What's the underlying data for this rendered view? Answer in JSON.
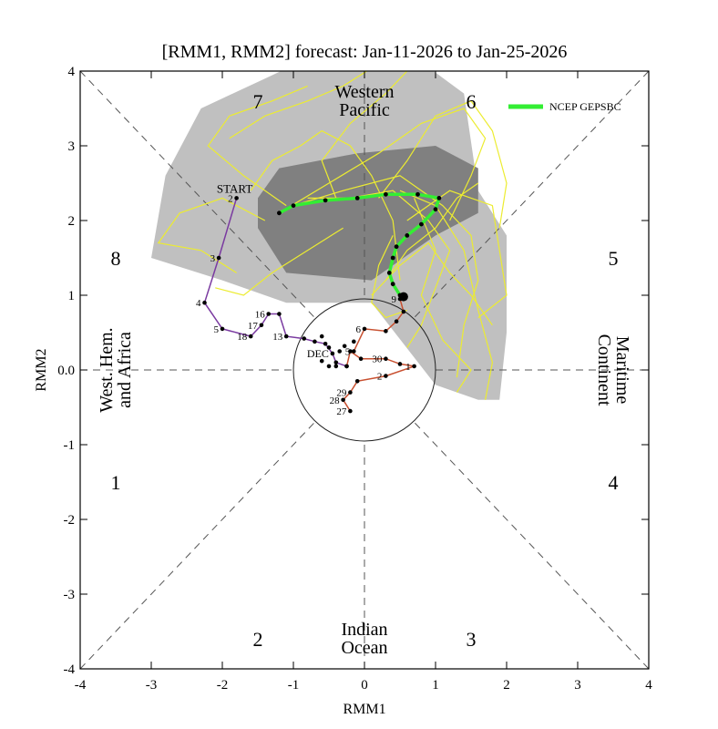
{
  "chart_data": {
    "type": "scatter",
    "title": "[RMM1, RMM2] forecast: Jan-11-2026 to Jan-25-2026",
    "xlabel": "RMM1",
    "ylabel": "RMM2",
    "xlim": [
      -4,
      4
    ],
    "ylim": [
      -4,
      4
    ],
    "x_ticks": [
      "-4",
      "-3",
      "-2",
      "-1",
      "0",
      "1",
      "2",
      "3",
      "4"
    ],
    "y_ticks": [
      "-4",
      "-3",
      "-2",
      "-1",
      "0.0",
      "1",
      "2",
      "3",
      "4"
    ],
    "grid": false,
    "legend_position": "top-right",
    "phases": [
      {
        "label": "1",
        "x": -3.5,
        "y": -1.5
      },
      {
        "label": "2",
        "x": -1.5,
        "y": -3.6
      },
      {
        "label": "3",
        "x": 1.5,
        "y": -3.6
      },
      {
        "label": "4",
        "x": 3.5,
        "y": -1.5
      },
      {
        "label": "5",
        "x": 3.5,
        "y": 1.5
      },
      {
        "label": "6",
        "x": 1.5,
        "y": 3.6
      },
      {
        "label": "7",
        "x": -1.5,
        "y": 3.6
      },
      {
        "label": "8",
        "x": -3.5,
        "y": 1.5
      }
    ],
    "regions": [
      {
        "label": "Western Pacific",
        "lines": [
          "Western",
          "Pacific"
        ],
        "x": 0,
        "y": 3.6,
        "orientation": "horizontal"
      },
      {
        "label": "Indian Ocean",
        "lines": [
          "Indian",
          "Ocean"
        ],
        "x": 0,
        "y": -3.6,
        "orientation": "horizontal"
      },
      {
        "label": "West. Hem. and Africa",
        "lines": [
          "West. Hem.",
          "and Africa"
        ],
        "x": -3.5,
        "y": 0,
        "orientation": "vertical-left"
      },
      {
        "label": "Maritime Continent",
        "lines": [
          "Maritime",
          "Continent"
        ],
        "x": 3.5,
        "y": 0,
        "orientation": "vertical-right"
      }
    ],
    "circle_radius": 1,
    "spread_outer": [
      [
        -3.0,
        1.5
      ],
      [
        -2.8,
        2.6
      ],
      [
        -2.3,
        3.5
      ],
      [
        -1.4,
        3.9
      ],
      [
        -0.5,
        4.3
      ],
      [
        0.4,
        4.4
      ],
      [
        1.4,
        3.7
      ],
      [
        1.6,
        2.4
      ],
      [
        2.0,
        1.8
      ],
      [
        2.0,
        0.5
      ],
      [
        1.9,
        -0.4
      ],
      [
        1.6,
        -0.4
      ],
      [
        1.0,
        -0.2
      ],
      [
        0.1,
        0.9
      ],
      [
        -1.1,
        0.9
      ],
      [
        -2.0,
        1.2
      ]
    ],
    "spread_inner": [
      [
        -1.5,
        2.3
      ],
      [
        -1.2,
        2.7
      ],
      [
        -0.1,
        2.9
      ],
      [
        1.0,
        3.0
      ],
      [
        1.6,
        2.7
      ],
      [
        1.6,
        2.1
      ],
      [
        1.0,
        1.8
      ],
      [
        0.1,
        1.2
      ],
      [
        -1.1,
        1.3
      ],
      [
        -1.5,
        1.9
      ]
    ],
    "members": [
      [
        [
          -1.6,
          2.4
        ],
        [
          -1.3,
          2.8
        ],
        [
          -0.9,
          3.0
        ],
        [
          -0.6,
          3.2
        ],
        [
          -0.2,
          3.0
        ],
        [
          0.1,
          2.6
        ],
        [
          0.4,
          2.0
        ],
        [
          0.5,
          1.2
        ]
      ],
      [
        [
          -1.2,
          2.1
        ],
        [
          -0.5,
          2.5
        ],
        [
          0.2,
          2.9
        ],
        [
          0.8,
          3.3
        ],
        [
          1.4,
          3.5
        ],
        [
          1.7,
          3.1
        ],
        [
          1.5,
          2.6
        ],
        [
          1.2,
          2.0
        ]
      ],
      [
        [
          -1.0,
          2.2
        ],
        [
          -0.3,
          2.4
        ],
        [
          0.5,
          2.6
        ],
        [
          1.1,
          2.2
        ],
        [
          1.5,
          1.8
        ],
        [
          1.6,
          1.2
        ],
        [
          1.4,
          0.6
        ],
        [
          1.3,
          -0.1
        ]
      ],
      [
        [
          -0.8,
          2.3
        ],
        [
          -0.2,
          2.3
        ],
        [
          0.4,
          2.4
        ],
        [
          0.9,
          2.0
        ],
        [
          1.2,
          1.6
        ],
        [
          1.0,
          1.1
        ],
        [
          0.8,
          0.6
        ],
        [
          0.6,
          0.3
        ]
      ],
      [
        [
          -1.4,
          2.0
        ],
        [
          -2.0,
          2.3
        ],
        [
          -2.6,
          2.1
        ],
        [
          -2.9,
          1.7
        ],
        [
          -2.3,
          1.6
        ],
        [
          -1.8,
          1.3
        ]
      ],
      [
        [
          -1.1,
          2.2
        ],
        [
          -1.7,
          2.6
        ],
        [
          -2.2,
          3.0
        ],
        [
          -1.9,
          3.4
        ],
        [
          -1.3,
          3.6
        ],
        [
          -0.8,
          3.8
        ]
      ],
      [
        [
          -0.4,
          2.3
        ],
        [
          -0.6,
          2.8
        ],
        [
          -0.2,
          3.3
        ],
        [
          0.3,
          3.7
        ],
        [
          0.7,
          4.1
        ],
        [
          0.2,
          4.3
        ]
      ],
      [
        [
          0.2,
          2.3
        ],
        [
          0.6,
          2.8
        ],
        [
          1.0,
          3.4
        ],
        [
          1.5,
          3.6
        ],
        [
          1.8,
          3.2
        ],
        [
          2.0,
          2.5
        ],
        [
          1.9,
          1.9
        ]
      ],
      [
        [
          0.5,
          2.4
        ],
        [
          1.0,
          2.2
        ],
        [
          1.4,
          1.6
        ],
        [
          1.6,
          0.8
        ],
        [
          1.8,
          0.1
        ],
        [
          1.7,
          -0.4
        ]
      ],
      [
        [
          0.7,
          2.3
        ],
        [
          1.0,
          1.6
        ],
        [
          0.8,
          1.0
        ],
        [
          1.1,
          0.4
        ],
        [
          1.5,
          0.0
        ],
        [
          1.3,
          -0.3
        ]
      ],
      [
        [
          0.4,
          1.8
        ],
        [
          0.2,
          1.4
        ],
        [
          0.1,
          0.9
        ],
        [
          0.3,
          0.7
        ],
        [
          0.6,
          0.8
        ]
      ],
      [
        [
          0.6,
          2.0
        ],
        [
          1.2,
          2.4
        ],
        [
          1.8,
          2.2
        ],
        [
          1.9,
          1.6
        ],
        [
          2.0,
          1.0
        ],
        [
          1.6,
          0.7
        ]
      ],
      [
        [
          0.3,
          1.2
        ],
        [
          0.6,
          1.6
        ],
        [
          1.0,
          1.9
        ],
        [
          1.3,
          2.3
        ],
        [
          1.6,
          2.5
        ]
      ],
      [
        [
          -0.3,
          1.9
        ],
        [
          -0.8,
          1.6
        ],
        [
          -1.3,
          1.3
        ],
        [
          -1.7,
          1.0
        ],
        [
          -2.1,
          1.1
        ]
      ],
      [
        [
          0.1,
          1.0
        ],
        [
          0.5,
          1.4
        ],
        [
          0.9,
          1.7
        ],
        [
          1.2,
          1.3
        ],
        [
          1.5,
          1.0
        ],
        [
          1.8,
          0.6
        ]
      ],
      [
        [
          -1.9,
          3.1
        ],
        [
          -1.4,
          3.4
        ],
        [
          -0.8,
          3.6
        ],
        [
          -0.3,
          3.8
        ],
        [
          0.2,
          4.1
        ],
        [
          0.6,
          4.4
        ]
      ]
    ],
    "observed_purple": {
      "points": [
        [
          -1.8,
          2.3
        ],
        [
          -2.05,
          1.5
        ],
        [
          -2.25,
          0.9
        ],
        [
          -2.0,
          0.55
        ],
        [
          -1.6,
          0.45
        ],
        [
          -1.45,
          0.6
        ],
        [
          -1.35,
          0.75
        ],
        [
          -1.2,
          0.75
        ],
        [
          -1.1,
          0.45
        ],
        [
          -0.85,
          0.42
        ],
        [
          -0.7,
          0.38
        ],
        [
          -0.55,
          0.35
        ],
        [
          -0.45,
          0.22
        ],
        [
          -0.4,
          0.1
        ],
        [
          -0.25,
          0.05
        ]
      ],
      "labels": [
        {
          "text": "2",
          "i": 0
        },
        {
          "text": "3",
          "i": 1
        },
        {
          "text": "4",
          "i": 2
        },
        {
          "text": "5",
          "i": 3
        },
        {
          "text": "17",
          "i": 5
        },
        {
          "text": "18",
          "i": 4
        },
        {
          "text": "16",
          "i": 6
        },
        {
          "text": "13",
          "i": 8
        },
        {
          "text": "DEC",
          "i": 12
        }
      ]
    },
    "observed_red": {
      "points": [
        [
          -0.25,
          0.05
        ],
        [
          -0.2,
          0.25
        ],
        [
          -0.05,
          0.15
        ],
        [
          0.3,
          0.15
        ],
        [
          0.5,
          0.08
        ],
        [
          0.7,
          0.05
        ],
        [
          0.3,
          -0.08
        ],
        [
          -0.1,
          -0.15
        ],
        [
          -0.2,
          -0.3
        ],
        [
          -0.3,
          -0.4
        ],
        [
          -0.2,
          -0.55
        ]
      ],
      "labels": [
        {
          "text": "30",
          "i": 3
        },
        {
          "text": "1",
          "i": 5
        },
        {
          "text": "2",
          "i": 6
        },
        {
          "text": "29",
          "i": 8
        },
        {
          "text": "28",
          "i": 9
        },
        {
          "text": "27",
          "i": 10
        }
      ]
    },
    "observed_recent": {
      "points": [
        [
          -0.15,
          0.25
        ],
        [
          0.0,
          0.55
        ],
        [
          0.3,
          0.52
        ],
        [
          0.45,
          0.65
        ],
        [
          0.55,
          0.78
        ],
        [
          0.5,
          0.95
        ]
      ],
      "labels": [
        {
          "text": "5",
          "i": 0
        },
        {
          "text": "6",
          "i": 1
        },
        {
          "text": "9",
          "i": 5
        }
      ]
    },
    "observed_mid_dots": [
      [
        -0.6,
        0.45
      ],
      [
        -0.5,
        0.3
      ],
      [
        -0.35,
        0.25
      ],
      [
        -0.28,
        0.32
      ],
      [
        -0.15,
        0.38
      ],
      [
        -0.4,
        0.05
      ],
      [
        -0.5,
        0.05
      ],
      [
        -0.6,
        0.12
      ]
    ],
    "start_label": "START",
    "start_point": [
      -1.8,
      2.3
    ],
    "current_point": [
      0.55,
      0.98
    ],
    "series": [
      {
        "name": "NCEP GEPSBC",
        "color": "#33ee33",
        "points": [
          [
            0.5,
            1.0
          ],
          [
            0.4,
            1.15
          ],
          [
            0.35,
            1.3
          ],
          [
            0.4,
            1.5
          ],
          [
            0.45,
            1.65
          ],
          [
            0.6,
            1.8
          ],
          [
            0.8,
            1.95
          ],
          [
            1.0,
            2.15
          ],
          [
            1.05,
            2.3
          ],
          [
            0.75,
            2.35
          ],
          [
            0.3,
            2.35
          ],
          [
            -0.1,
            2.3
          ],
          [
            -0.55,
            2.27
          ],
          [
            -1.0,
            2.2
          ],
          [
            -1.2,
            2.1
          ]
        ]
      }
    ],
    "colors": {
      "spread_outer": "#c0c0c0",
      "spread_inner": "#808080",
      "members": "#ecec30",
      "observed_early": "#7a3aa0",
      "observed_late": "#c85030",
      "forecast": "#33ee33"
    }
  }
}
